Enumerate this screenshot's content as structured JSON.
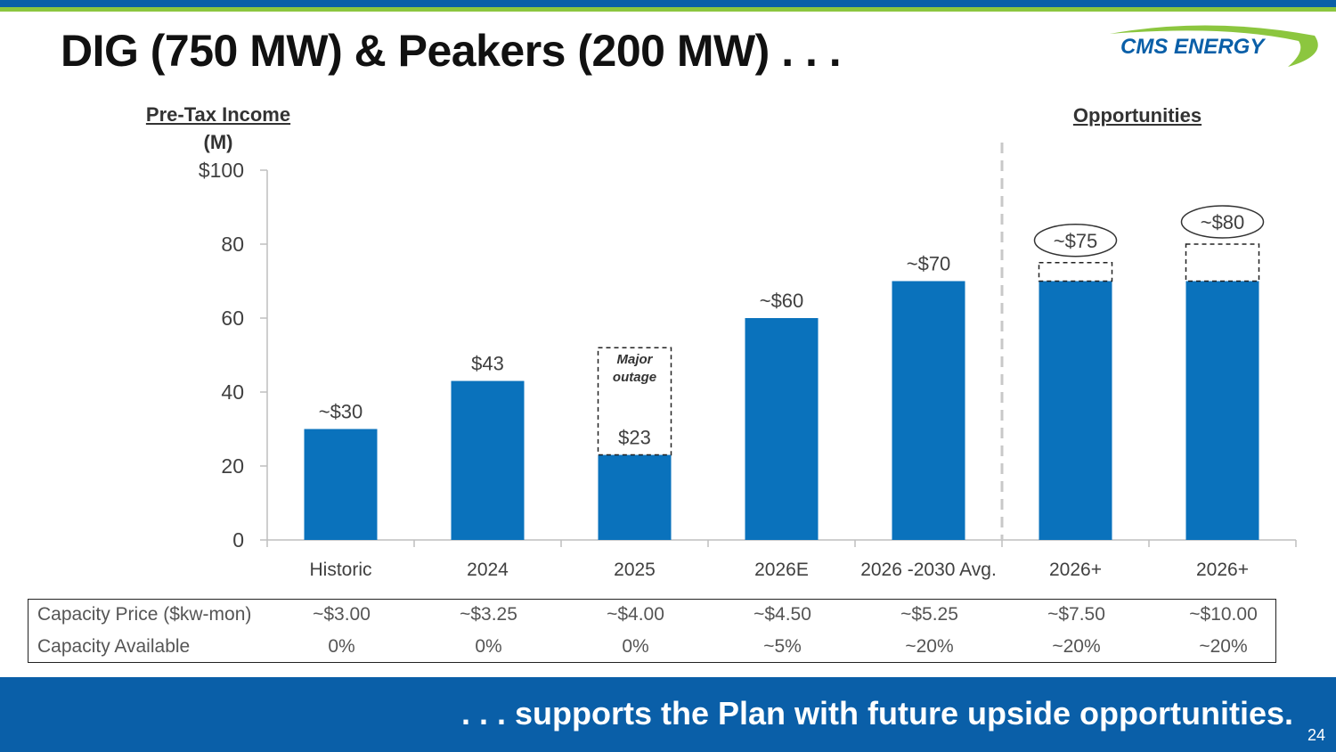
{
  "header": {
    "title": "DIG (750 MW) & Peakers (200 MW) . . .",
    "logo_text": "CMS ENERGY"
  },
  "colors": {
    "bar": "#0a72bc",
    "brand_blue": "#0a5fa8",
    "brand_green": "#8cc63f"
  },
  "chart_data": {
    "type": "bar",
    "title": "Pre-Tax Income",
    "ylabel_unit": "(M)",
    "y_tick_labels": [
      "0",
      "20",
      "40",
      "60",
      "80",
      "$100"
    ],
    "y_ticks": [
      0,
      20,
      40,
      60,
      80,
      100
    ],
    "ylim": [
      0,
      100
    ],
    "categories": [
      "Historic",
      "2024",
      "2025",
      "2026E",
      "2026 -2030 Avg.",
      "2026+",
      "2026+"
    ],
    "values": [
      30,
      43,
      23,
      60,
      70,
      70,
      70
    ],
    "data_labels": [
      "~$30",
      "$43",
      "$23",
      "~$60",
      "~$70",
      "~$75",
      "~$80"
    ],
    "totals": [
      30,
      43,
      23,
      60,
      70,
      75,
      80
    ],
    "annotations": [
      {
        "category_index": 2,
        "text_lines": [
          "Major",
          "outage"
        ],
        "dashed_top": 52
      }
    ],
    "opportunities_label": "Opportunities",
    "opportunities_start_index": 5
  },
  "capacity_table": {
    "rows": [
      {
        "label": "Capacity Price ($kw-mon)",
        "values": [
          "~$3.00",
          "~$3.25",
          "~$4.00",
          "~$4.50",
          "~$5.25",
          "~$7.50",
          "~$10.00"
        ]
      },
      {
        "label": "Capacity Available",
        "values": [
          "0%",
          "0%",
          "0%",
          "~5%",
          "~20%",
          "~20%",
          "~20%"
        ]
      }
    ]
  },
  "footer": {
    "text": ". . . supports the Plan with future upside opportunities.",
    "page_number": "24"
  }
}
